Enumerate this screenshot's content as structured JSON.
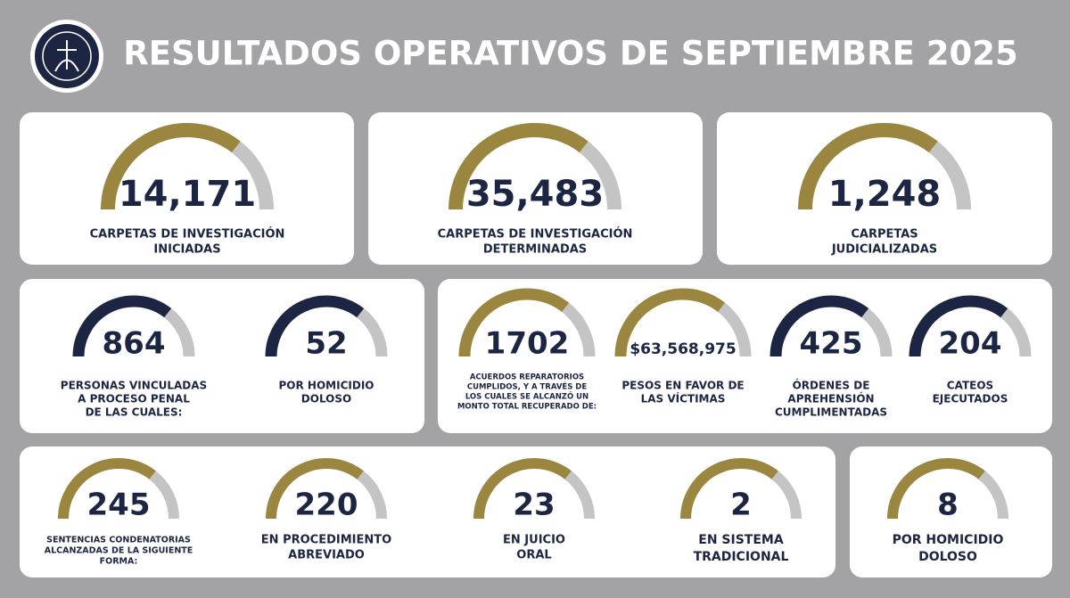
{
  "header": {
    "title": "RESULTADOS OPERATIVOS DE SEPTIEMBRE 2025"
  },
  "cards": [
    {
      "items": [
        {
          "value": "14,171",
          "label": [
            "CARPETAS DE INVESTIGACIÓN",
            "INICIADAS"
          ],
          "color": "#9b8640"
        }
      ]
    },
    {
      "items": [
        {
          "value": "35,483",
          "label": [
            "CARPETAS DE INVESTIGACIÓN",
            "DETERMINADAS"
          ],
          "color": "#9b8640"
        }
      ]
    },
    {
      "items": [
        {
          "value": "1,248",
          "label": [
            "CARPETAS",
            "JUDICIALIZADAS"
          ],
          "color": "#9b8640"
        }
      ]
    },
    {
      "items": [
        {
          "value": "864",
          "label": [
            "PERSONAS VINCULADAS",
            "A PROCESO PENAL",
            "DE LAS CUALES:"
          ],
          "color": "#1c2541"
        },
        {
          "value": "52",
          "label": [
            "POR HOMICIDIO",
            "DOLOSO"
          ],
          "color": "#1c2541"
        }
      ]
    },
    {
      "items": [
        {
          "value": "1702",
          "label": [
            "ACUERDOS REPARATORIOS",
            "CUMPLIDOS, Y A TRAVÉS DE",
            "LOS CUALES SE ALCANZÓ UN",
            "MONTO TOTAL RECUPERADO DE:"
          ],
          "color": "#9b8640"
        },
        {
          "value": "$63,568,975",
          "label": [
            "PESOS EN FAVOR DE",
            "LAS VÍCTIMAS"
          ],
          "color": "#9b8640"
        },
        {
          "value": "425",
          "label": [
            "ÓRDENES DE",
            "APREHENSIÓN",
            "CUMPLIMENTADAS"
          ],
          "color": "#1c2541"
        },
        {
          "value": "204",
          "label": [
            "CATEOS",
            "EJECUTADOS"
          ],
          "color": "#1c2541"
        }
      ]
    },
    {
      "items": [
        {
          "value": "245",
          "label": [
            "SENTENCIAS CONDENATORIAS",
            "ALCANZADAS DE LA SIGUIENTE",
            "FORMA:"
          ],
          "color": "#9b8640"
        },
        {
          "value": "220",
          "label": [
            "EN PROCEDIMIENTO",
            "ABREVIADO"
          ],
          "color": "#9b8640"
        },
        {
          "value": "23",
          "label": [
            "EN JUICIO",
            "ORAL"
          ],
          "color": "#9b8640"
        },
        {
          "value": "2",
          "label": [
            "EN SISTEMA",
            "TRADICIONAL"
          ],
          "color": "#9b8640"
        }
      ]
    },
    {
      "items": [
        {
          "value": "8",
          "label": [
            "POR HOMICIDIO",
            "DOLOSO"
          ],
          "color": "#9b8640"
        }
      ]
    }
  ]
}
